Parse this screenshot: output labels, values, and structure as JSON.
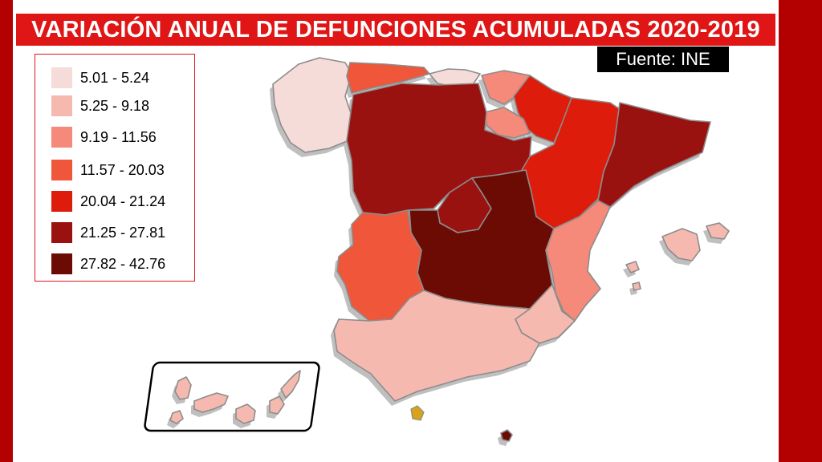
{
  "title": "VARIACIÓN ANUAL DE DEFUNCIONES ACUMULADAS 2020-2019",
  "source": "Fuente: INE",
  "legend": {
    "items": [
      {
        "label": "5.01 - 5.24",
        "color": "#f5dcd8"
      },
      {
        "label": "5.25 - 9.18",
        "color": "#f6b9b0"
      },
      {
        "label": "9.19 - 11.56",
        "color": "#f5897a"
      },
      {
        "label": "11.57 - 20.03",
        "color": "#ef563a"
      },
      {
        "label": "20.04 - 21.24",
        "color": "#dd1c0c"
      },
      {
        "label": "21.25 - 27.81",
        "color": "#9a1210"
      },
      {
        "label": "27.82 - 42.76",
        "color": "#6c0b03"
      }
    ]
  },
  "colors": {
    "frame": "#b30000",
    "title_background": "#e01515",
    "title_text": "#ffffff",
    "source_background": "#000000",
    "region_edge": "#8c8c8c",
    "ceuta": "#d9a21b"
  },
  "regions": [
    {
      "name": "galicia",
      "color": "#f5dcd8"
    },
    {
      "name": "asturias",
      "color": "#ef563a"
    },
    {
      "name": "cantabria",
      "color": "#f5dcd8"
    },
    {
      "name": "pais-vasco",
      "color": "#f5897a"
    },
    {
      "name": "navarra",
      "color": "#dd1c0c"
    },
    {
      "name": "la-rioja",
      "color": "#f5897a"
    },
    {
      "name": "castilla-y-leon",
      "color": "#9a1210"
    },
    {
      "name": "aragon",
      "color": "#dd1c0c"
    },
    {
      "name": "cataluna",
      "color": "#9a1210"
    },
    {
      "name": "madrid",
      "color": "#9a1210"
    },
    {
      "name": "castilla-la-mancha",
      "color": "#6c0b03"
    },
    {
      "name": "extremadura",
      "color": "#ef563a"
    },
    {
      "name": "comunitat-valenciana",
      "color": "#f5897a"
    },
    {
      "name": "region-de-murcia",
      "color": "#f6b9b0"
    },
    {
      "name": "andalucia",
      "color": "#f6b9b0"
    },
    {
      "name": "illes-balears",
      "color": "#f6b9b0"
    },
    {
      "name": "canarias",
      "color": "#f6b9b0"
    },
    {
      "name": "melilla",
      "color": "#6c0b03"
    }
  ]
}
